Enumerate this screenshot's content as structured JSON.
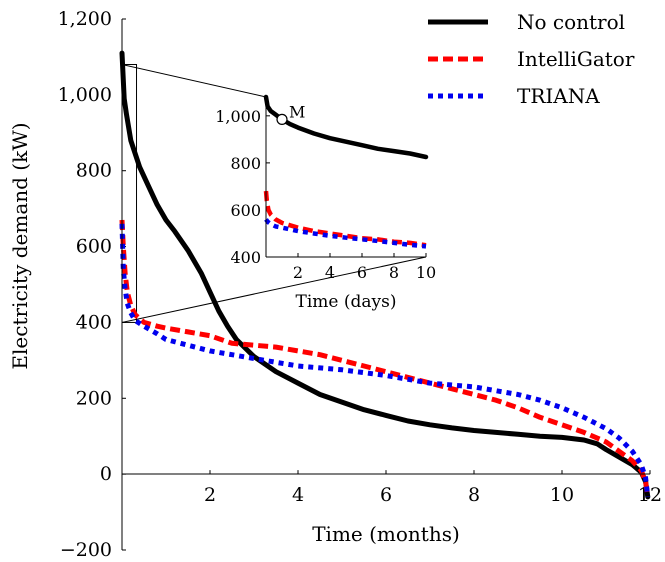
{
  "chart_data": [
    {
      "type": "line",
      "xlabel": "Time (months)",
      "ylabel": "Electricity demand (kW)",
      "xlim": [
        0,
        12
      ],
      "ylim": [
        -200,
        1200
      ],
      "xticks": [
        2,
        4,
        6,
        8,
        10,
        12
      ],
      "xtick_labels": [
        "2",
        "4",
        "6",
        "8",
        "10",
        "12"
      ],
      "yticks": [
        -200,
        0,
        200,
        400,
        600,
        800,
        1000,
        1200
      ],
      "ytick_labels": [
        "−200",
        "0",
        "200",
        "400",
        "600",
        "800",
        "1,000",
        "1,200"
      ],
      "grid": false,
      "legend_position": "top-right",
      "series": [
        {
          "name": "No control",
          "color": "#000000",
          "style": "solid",
          "points": [
            [
              0.0,
              1110
            ],
            [
              0.05,
              990
            ],
            [
              0.1,
              950
            ],
            [
              0.2,
              880
            ],
            [
              0.4,
              810
            ],
            [
              0.6,
              760
            ],
            [
              0.8,
              710
            ],
            [
              1.0,
              670
            ],
            [
              1.2,
              640
            ],
            [
              1.5,
              590
            ],
            [
              1.8,
              530
            ],
            [
              2.0,
              480
            ],
            [
              2.2,
              430
            ],
            [
              2.4,
              390
            ],
            [
              2.6,
              355
            ],
            [
              3.0,
              310
            ],
            [
              3.5,
              270
            ],
            [
              4.0,
              240
            ],
            [
              4.5,
              210
            ],
            [
              5.0,
              190
            ],
            [
              5.5,
              170
            ],
            [
              6.0,
              155
            ],
            [
              6.5,
              140
            ],
            [
              7.0,
              130
            ],
            [
              7.5,
              122
            ],
            [
              8.0,
              115
            ],
            [
              8.5,
              110
            ],
            [
              9.0,
              105
            ],
            [
              9.5,
              100
            ],
            [
              10.0,
              97
            ],
            [
              10.5,
              90
            ],
            [
              10.8,
              80
            ],
            [
              11.0,
              65
            ],
            [
              11.3,
              45
            ],
            [
              11.6,
              25
            ],
            [
              11.8,
              5
            ],
            [
              11.9,
              -20
            ],
            [
              11.95,
              -60
            ]
          ]
        },
        {
          "name": "IntelliGator",
          "color": "#ff0000",
          "style": "dashed",
          "points": [
            [
              0.0,
              670
            ],
            [
              0.03,
              600
            ],
            [
              0.07,
              530
            ],
            [
              0.12,
              480
            ],
            [
              0.2,
              445
            ],
            [
              0.3,
              420
            ],
            [
              0.5,
              400
            ],
            [
              0.8,
              390
            ],
            [
              1.0,
              385
            ],
            [
              1.5,
              375
            ],
            [
              2.0,
              365
            ],
            [
              2.5,
              345
            ],
            [
              3.0,
              340
            ],
            [
              3.5,
              335
            ],
            [
              4.0,
              325
            ],
            [
              4.5,
              315
            ],
            [
              5.0,
              300
            ],
            [
              5.5,
              285
            ],
            [
              6.0,
              270
            ],
            [
              6.5,
              255
            ],
            [
              7.0,
              240
            ],
            [
              7.5,
              225
            ],
            [
              8.0,
              210
            ],
            [
              8.5,
              195
            ],
            [
              9.0,
              175
            ],
            [
              9.5,
              150
            ],
            [
              10.0,
              130
            ],
            [
              10.5,
              110
            ],
            [
              11.0,
              85
            ],
            [
              11.3,
              60
            ],
            [
              11.6,
              35
            ],
            [
              11.8,
              10
            ],
            [
              11.9,
              -20
            ],
            [
              11.95,
              -60
            ]
          ]
        },
        {
          "name": "TRIANA",
          "color": "#0000ee",
          "style": "dotted",
          "points": [
            [
              0.0,
              660
            ],
            [
              0.03,
              540
            ],
            [
              0.07,
              490
            ],
            [
              0.12,
              450
            ],
            [
              0.2,
              425
            ],
            [
              0.3,
              405
            ],
            [
              0.5,
              390
            ],
            [
              0.8,
              370
            ],
            [
              1.0,
              355
            ],
            [
              1.5,
              340
            ],
            [
              2.0,
              325
            ],
            [
              2.5,
              315
            ],
            [
              3.0,
              305
            ],
            [
              3.5,
              295
            ],
            [
              4.0,
              285
            ],
            [
              5.0,
              275
            ],
            [
              6.0,
              260
            ],
            [
              6.5,
              250
            ],
            [
              7.0,
              240
            ],
            [
              7.5,
              235
            ],
            [
              8.0,
              230
            ],
            [
              8.5,
              220
            ],
            [
              9.0,
              210
            ],
            [
              9.5,
              195
            ],
            [
              10.0,
              175
            ],
            [
              10.5,
              150
            ],
            [
              11.0,
              120
            ],
            [
              11.3,
              95
            ],
            [
              11.6,
              60
            ],
            [
              11.8,
              25
            ],
            [
              11.9,
              -10
            ],
            [
              11.95,
              -60
            ]
          ]
        }
      ]
    },
    {
      "type": "line",
      "xlabel": "Time (days)",
      "ylabel": "",
      "xlim": [
        0,
        10
      ],
      "ylim": [
        400,
        1080
      ],
      "xticks": [
        2,
        4,
        6,
        8,
        10
      ],
      "xtick_labels": [
        "2",
        "4",
        "6",
        "8",
        "10"
      ],
      "yticks": [
        400,
        600,
        800,
        1000
      ],
      "ytick_labels": [
        "400",
        "600",
        "800",
        "1,000"
      ],
      "grid": false,
      "annotation": {
        "label": "M",
        "x": 1,
        "y": 985
      },
      "series": [
        {
          "name": "No control",
          "color": "#000000",
          "style": "solid",
          "points": [
            [
              0.0,
              1080
            ],
            [
              0.1,
              1040
            ],
            [
              0.3,
              1020
            ],
            [
              0.6,
              1005
            ],
            [
              1.0,
              985
            ],
            [
              1.5,
              965
            ],
            [
              2.0,
              950
            ],
            [
              3.0,
              925
            ],
            [
              4.0,
              905
            ],
            [
              5.0,
              890
            ],
            [
              6.0,
              875
            ],
            [
              7.0,
              860
            ],
            [
              8.0,
              850
            ],
            [
              9.0,
              840
            ],
            [
              10.0,
              825
            ]
          ]
        },
        {
          "name": "IntelliGator",
          "color": "#ff0000",
          "style": "dashed",
          "points": [
            [
              0.0,
              680
            ],
            [
              0.05,
              640
            ],
            [
              0.15,
              600
            ],
            [
              0.3,
              580
            ],
            [
              0.6,
              560
            ],
            [
              1.0,
              545
            ],
            [
              2.0,
              525
            ],
            [
              3.0,
              510
            ],
            [
              4.0,
              500
            ],
            [
              5.0,
              490
            ],
            [
              6.0,
              480
            ],
            [
              7.0,
              475
            ],
            [
              8.0,
              465
            ],
            [
              9.0,
              460
            ],
            [
              10.0,
              450
            ]
          ]
        },
        {
          "name": "TRIANA",
          "color": "#0000ee",
          "style": "dotted",
          "points": [
            [
              0.0,
              560
            ],
            [
              0.1,
              550
            ],
            [
              0.3,
              540
            ],
            [
              0.6,
              530
            ],
            [
              1.0,
              525
            ],
            [
              2.0,
              510
            ],
            [
              3.0,
              500
            ],
            [
              4.0,
              490
            ],
            [
              5.0,
              482
            ],
            [
              6.0,
              475
            ],
            [
              7.0,
              468
            ],
            [
              8.0,
              460
            ],
            [
              9.0,
              452
            ],
            [
              10.0,
              445
            ]
          ]
        }
      ]
    }
  ]
}
